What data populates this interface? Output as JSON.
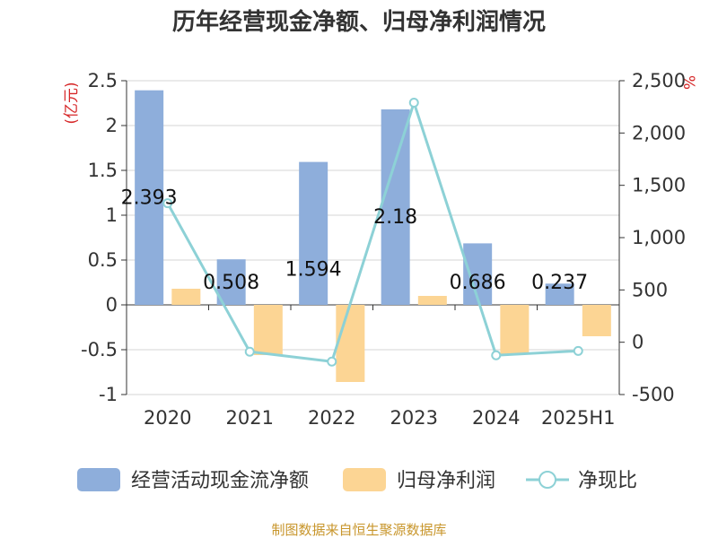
{
  "chart_data": {
    "type": "bar",
    "title": "历年经营现金净额、归母净利润情况",
    "categories": [
      "2020",
      "2021",
      "2022",
      "2023",
      "2024",
      "2025H1"
    ],
    "series": [
      {
        "name": "经营活动现金流净额",
        "type": "bar",
        "axis": "left",
        "values": [
          2.393,
          0.508,
          1.594,
          2.18,
          0.686,
          0.237
        ],
        "labels": [
          "2.393",
          "0.508",
          "1.594",
          "2.18",
          "0.686",
          "0.237"
        ],
        "color": "#8eaedb"
      },
      {
        "name": "归母净利润",
        "type": "bar",
        "axis": "left",
        "values": [
          0.18,
          -0.56,
          -0.86,
          0.1,
          -0.55,
          -0.35
        ],
        "color": "#fcd594"
      },
      {
        "name": "净现比",
        "type": "line",
        "axis": "right",
        "values": [
          1329,
          -91,
          -185,
          2290,
          -125,
          -83
        ],
        "color": "#8dd1d6"
      }
    ],
    "y_left": {
      "unit": "(亿元)",
      "min": -1,
      "max": 2.5,
      "ticks": [
        2.5,
        2,
        1.5,
        1,
        0.5,
        0,
        -0.5,
        -1
      ],
      "tick_labels": [
        "2.5",
        "2",
        "1.5",
        "1",
        "0.5",
        "0",
        "-0.5",
        "-1"
      ]
    },
    "y_right": {
      "unit": "%",
      "min": -500,
      "max": 2500,
      "ticks": [
        2500,
        2000,
        1500,
        1000,
        500,
        0,
        -500
      ],
      "tick_labels": [
        "2,500",
        "2,000",
        "1,500",
        "1,000",
        "500",
        "0",
        "-500"
      ]
    },
    "grid": true,
    "legend": "bottom",
    "source": "制图数据来自恒生聚源数据库"
  }
}
